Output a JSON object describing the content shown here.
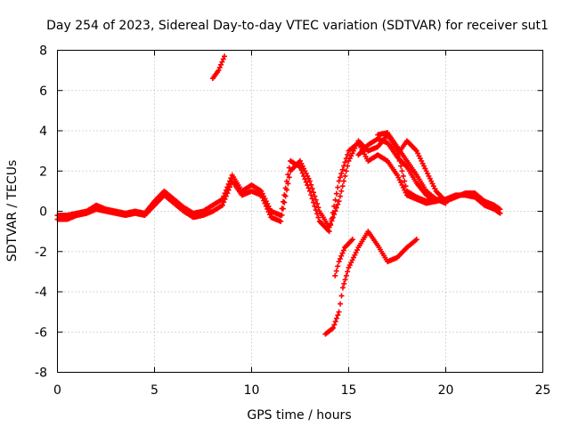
{
  "chart_data": {
    "type": "scatter",
    "title": "Day 254 of 2023, Sidereal Day-to-day VTEC variation (SDTVAR) for receiver sut1",
    "xlabel": "GPS time / hours",
    "ylabel": "SDTVAR / TECUs",
    "xlim": [
      0,
      25
    ],
    "ylim": [
      -8,
      8
    ],
    "xticks": [
      "0",
      "5",
      "10",
      "15",
      "20",
      "25"
    ],
    "yticks": [
      "-8",
      "-6",
      "-4",
      "-2",
      "0",
      "2",
      "4",
      "6",
      "8"
    ],
    "grid": true,
    "marker": "+",
    "color": "#ff0000",
    "series": [
      {
        "name": "track-a",
        "points": [
          [
            0,
            -0.4
          ],
          [
            0.5,
            -0.4
          ],
          [
            1,
            -0.2
          ],
          [
            1.5,
            -0.1
          ],
          [
            2,
            0.1
          ],
          [
            2.5,
            0
          ],
          [
            3,
            -0.1
          ],
          [
            3.5,
            -0.2
          ],
          [
            4,
            -0.1
          ],
          [
            4.5,
            -0.2
          ],
          [
            5,
            0.3
          ],
          [
            5.5,
            0.8
          ],
          [
            6,
            0.4
          ],
          [
            6.5,
            0
          ],
          [
            7,
            -0.3
          ],
          [
            7.5,
            -0.2
          ],
          [
            8,
            0
          ],
          [
            8.5,
            0.3
          ],
          [
            9,
            1.5
          ],
          [
            9.5,
            0.8
          ],
          [
            10,
            1
          ],
          [
            10.5,
            0.8
          ],
          [
            11,
            -0.3
          ],
          [
            11.5,
            -0.5
          ],
          [
            12,
            2
          ],
          [
            12.5,
            2.5
          ],
          [
            13,
            1.5
          ],
          [
            13.5,
            0
          ],
          [
            14,
            -0.8
          ],
          [
            14.5,
            0.5
          ],
          [
            15,
            2.5
          ],
          [
            15.5,
            3.5
          ],
          [
            16,
            3
          ],
          [
            16.5,
            3.2
          ],
          [
            17,
            3.8
          ],
          [
            17.5,
            3
          ],
          [
            18,
            1
          ],
          [
            18.5,
            0.7
          ],
          [
            19,
            0.5
          ],
          [
            19.5,
            0.6
          ],
          [
            20,
            0.5
          ],
          [
            20.5,
            0.7
          ],
          [
            21,
            0.9
          ],
          [
            21.5,
            0.9
          ],
          [
            22,
            0.5
          ],
          [
            22.5,
            0.3
          ],
          [
            22.8,
            0.1
          ]
        ]
      },
      {
        "name": "track-b",
        "points": [
          [
            0,
            -0.2
          ],
          [
            0.5,
            -0.2
          ],
          [
            1,
            -0.1
          ],
          [
            1.5,
            0
          ],
          [
            2,
            0.3
          ],
          [
            2.5,
            0.1
          ],
          [
            3,
            0
          ],
          [
            3.5,
            -0.1
          ],
          [
            4,
            0
          ],
          [
            4.5,
            -0.1
          ],
          [
            5,
            0.5
          ],
          [
            5.5,
            1
          ],
          [
            6,
            0.6
          ],
          [
            6.5,
            0.2
          ],
          [
            7,
            -0.1
          ],
          [
            7.5,
            0
          ],
          [
            8,
            0.3
          ],
          [
            8.5,
            0.6
          ],
          [
            9,
            1.8
          ],
          [
            9.5,
            1
          ],
          [
            10,
            1.3
          ],
          [
            10.5,
            1
          ],
          [
            11,
            0
          ],
          [
            11.5,
            -0.2
          ],
          [
            12,
            2.5
          ],
          [
            12.5,
            2.2
          ],
          [
            13,
            1
          ],
          [
            13.5,
            -0.5
          ],
          [
            14,
            -1
          ],
          [
            14.5,
            1.5
          ],
          [
            15,
            3
          ],
          [
            15.5,
            3.4
          ],
          [
            16,
            2.5
          ],
          [
            16.5,
            2.8
          ],
          [
            17,
            2.5
          ],
          [
            17.5,
            1.8
          ],
          [
            18,
            0.8
          ],
          [
            18.5,
            0.6
          ],
          [
            19,
            0.4
          ],
          [
            19.5,
            0.5
          ],
          [
            20,
            0.6
          ],
          [
            20.5,
            0.8
          ],
          [
            21,
            0.8
          ],
          [
            21.5,
            0.7
          ],
          [
            22,
            0.3
          ],
          [
            22.5,
            0.1
          ],
          [
            22.8,
            -0.1
          ]
        ]
      },
      {
        "name": "track-c",
        "points": [
          [
            15.5,
            2.8
          ],
          [
            16,
            3.3
          ],
          [
            16.5,
            3.6
          ],
          [
            17,
            3.4
          ],
          [
            17.5,
            2.7
          ],
          [
            18,
            2.2
          ],
          [
            18.5,
            1.4
          ],
          [
            19,
            0.8
          ],
          [
            19.5,
            0.5
          ]
        ]
      },
      {
        "name": "track-d",
        "points": [
          [
            16.5,
            3.8
          ],
          [
            17,
            3.9
          ],
          [
            17.5,
            3.2
          ],
          [
            18,
            2.5
          ],
          [
            18.5,
            1.8
          ],
          [
            19,
            1
          ],
          [
            19.5,
            0.6
          ],
          [
            20,
            0.4
          ]
        ]
      },
      {
        "name": "track-e",
        "points": [
          [
            17.5,
            2.8
          ],
          [
            18,
            3.5
          ],
          [
            18.5,
            3
          ],
          [
            19,
            2
          ],
          [
            19.5,
            1
          ],
          [
            20,
            0.5
          ]
        ]
      },
      {
        "name": "track-f",
        "points": [
          [
            13.8,
            -6.1
          ],
          [
            14.2,
            -5.8
          ],
          [
            14.5,
            -5
          ],
          [
            14.7,
            -3.8
          ],
          [
            15,
            -2.8
          ],
          [
            15.5,
            -1.8
          ],
          [
            16,
            -1
          ],
          [
            16.5,
            -1.7
          ],
          [
            17,
            -2.5
          ],
          [
            17.5,
            -2.3
          ],
          [
            18,
            -1.8
          ],
          [
            18.5,
            -1.4
          ]
        ]
      },
      {
        "name": "track-g",
        "points": [
          [
            14.3,
            -3.2
          ],
          [
            14.5,
            -2.5
          ],
          [
            14.8,
            -1.8
          ],
          [
            15.2,
            -1.4
          ]
        ]
      },
      {
        "name": "track-h",
        "points": [
          [
            8,
            6.6
          ],
          [
            8.3,
            7
          ],
          [
            8.6,
            7.7
          ]
        ]
      }
    ]
  }
}
